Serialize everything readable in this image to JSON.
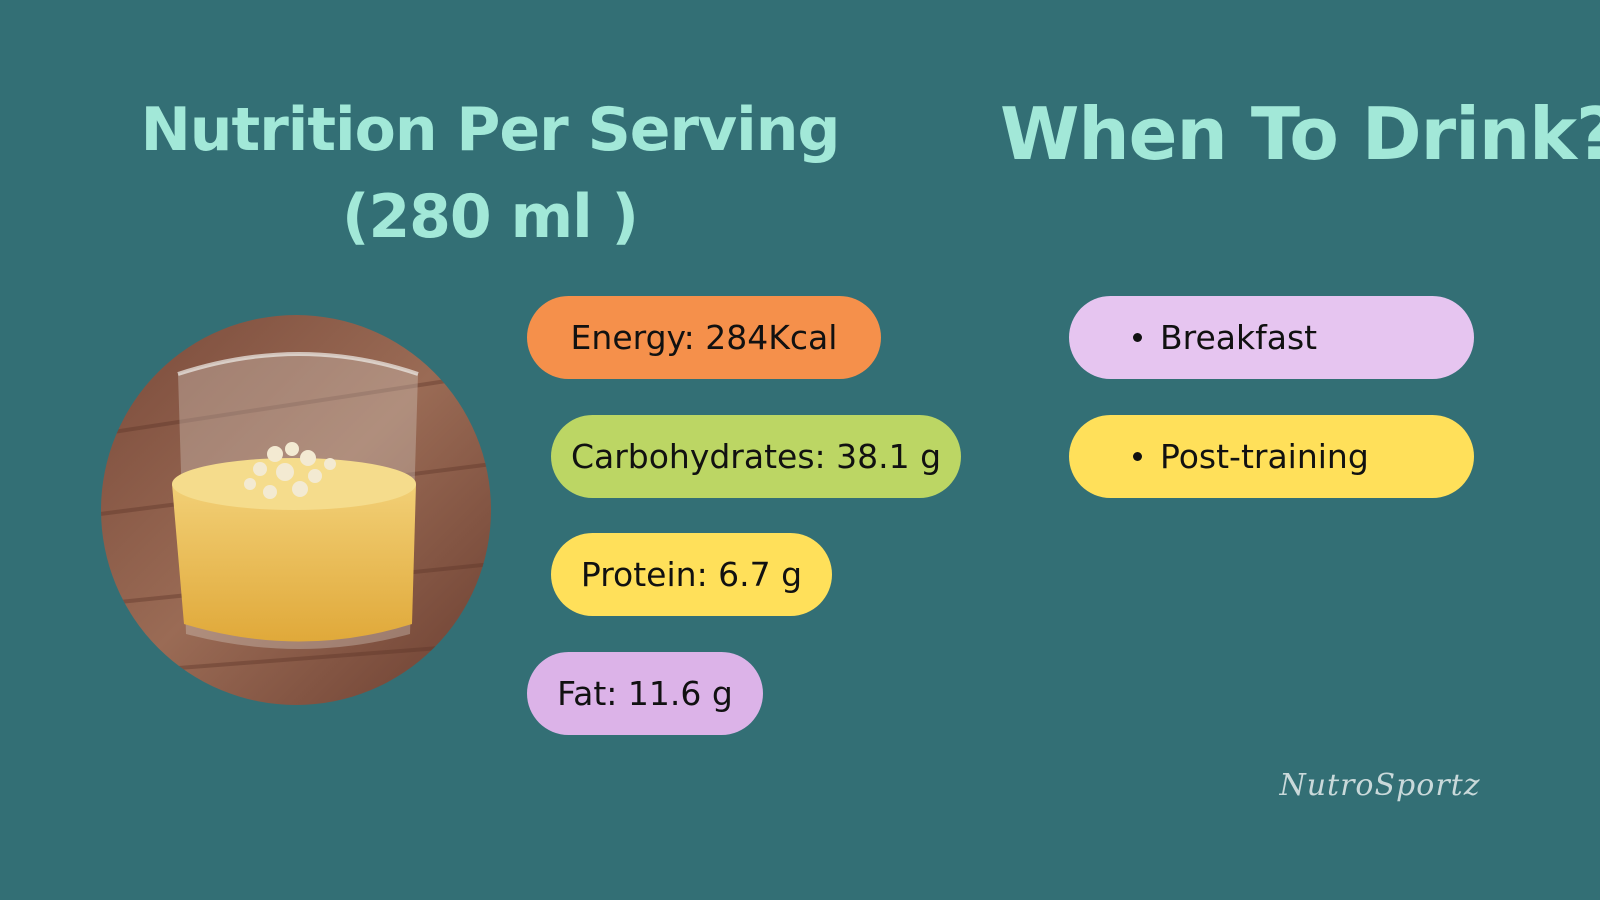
{
  "nutrition": {
    "title_line1": "Nutrition Per Serving",
    "title_line2": "(280 ml )",
    "items": [
      "Energy: 284Kcal",
      "Carbohydrates: 38.1 g",
      "Protein: 6.7 g",
      "Fat: 11.6 g"
    ]
  },
  "when": {
    "title": "When To Drink?",
    "items": [
      "Breakfast",
      "Post-training"
    ]
  },
  "brand": "NutroSportz"
}
